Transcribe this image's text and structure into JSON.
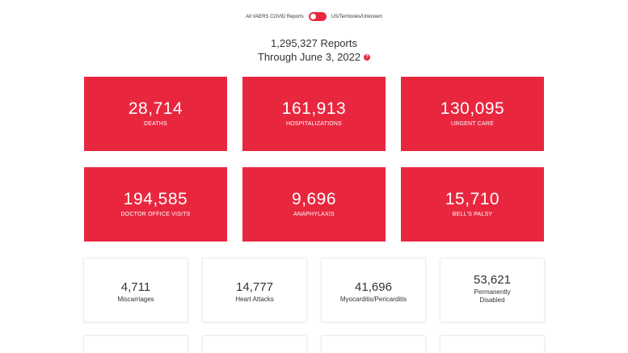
{
  "toggle": {
    "left_label": "All VAERS COVID Reports",
    "right_label": "US/Territories/Unknown"
  },
  "summary": {
    "reports": "1,295,327 Reports",
    "through": "Through June 3, 2022",
    "help_icon": "?"
  },
  "red_stats": [
    {
      "value": "28,714",
      "label": "DEATHS"
    },
    {
      "value": "161,913",
      "label": "HOSPITALIZATIONS"
    },
    {
      "value": "130,095",
      "label": "URGENT CARE"
    },
    {
      "value": "194,585",
      "label": "DOCTOR OFFICE VISITS"
    },
    {
      "value": "9,696",
      "label": "ANAPHYLAXIS"
    },
    {
      "value": "15,710",
      "label": "BELL'S PALSY"
    }
  ],
  "white_stats": [
    {
      "value": "4,711",
      "label": "Miscarriages"
    },
    {
      "value": "14,777",
      "label": "Heart Attacks"
    },
    {
      "value": "41,696",
      "label": "Myocarditis/Pericarditis"
    },
    {
      "value": "53,621",
      "label_line1": "Permanently",
      "label_line2": "Disabled"
    }
  ],
  "colors": {
    "accent": "#e8273f",
    "text": "#333333"
  }
}
